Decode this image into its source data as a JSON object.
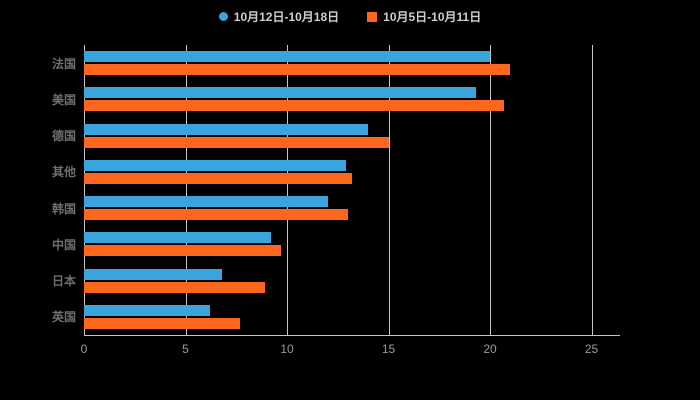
{
  "legend": {
    "items": [
      {
        "label": "10月12日-10月18日",
        "marker": "circle",
        "color": "#3aa4dc"
      },
      {
        "label": "10月5日-10月11日",
        "marker": "square",
        "color": "#fc661d"
      }
    ]
  },
  "chart_data": {
    "type": "bar",
    "orientation": "horizontal",
    "title": "",
    "xlabel": "",
    "ylabel": "",
    "categories": [
      "法国",
      "美国",
      "德国",
      "其他",
      "韩国",
      "中国",
      "日本",
      "英国"
    ],
    "series": [
      {
        "name": "10月12日-10月18日",
        "color": "#3aa4dc",
        "values": [
          20,
          19.3,
          14,
          12.9,
          12,
          9.2,
          6.8,
          6.2
        ]
      },
      {
        "name": "10月5日-10月11日",
        "color": "#fc661d",
        "values": [
          21,
          20.7,
          15,
          13.2,
          13,
          9.7,
          8.9,
          7.7
        ]
      }
    ],
    "xticks": [
      0,
      5,
      10,
      15,
      20,
      25
    ],
    "xlim": [
      0,
      26.4
    ],
    "grid": true,
    "legend_position": "top",
    "colors": {
      "background": "#000000",
      "grid_line": "#c6c6c6",
      "axis_line": "#c6c6c6",
      "tick_label": "#9a9a9a",
      "category_label": "#6e6e6e"
    }
  }
}
